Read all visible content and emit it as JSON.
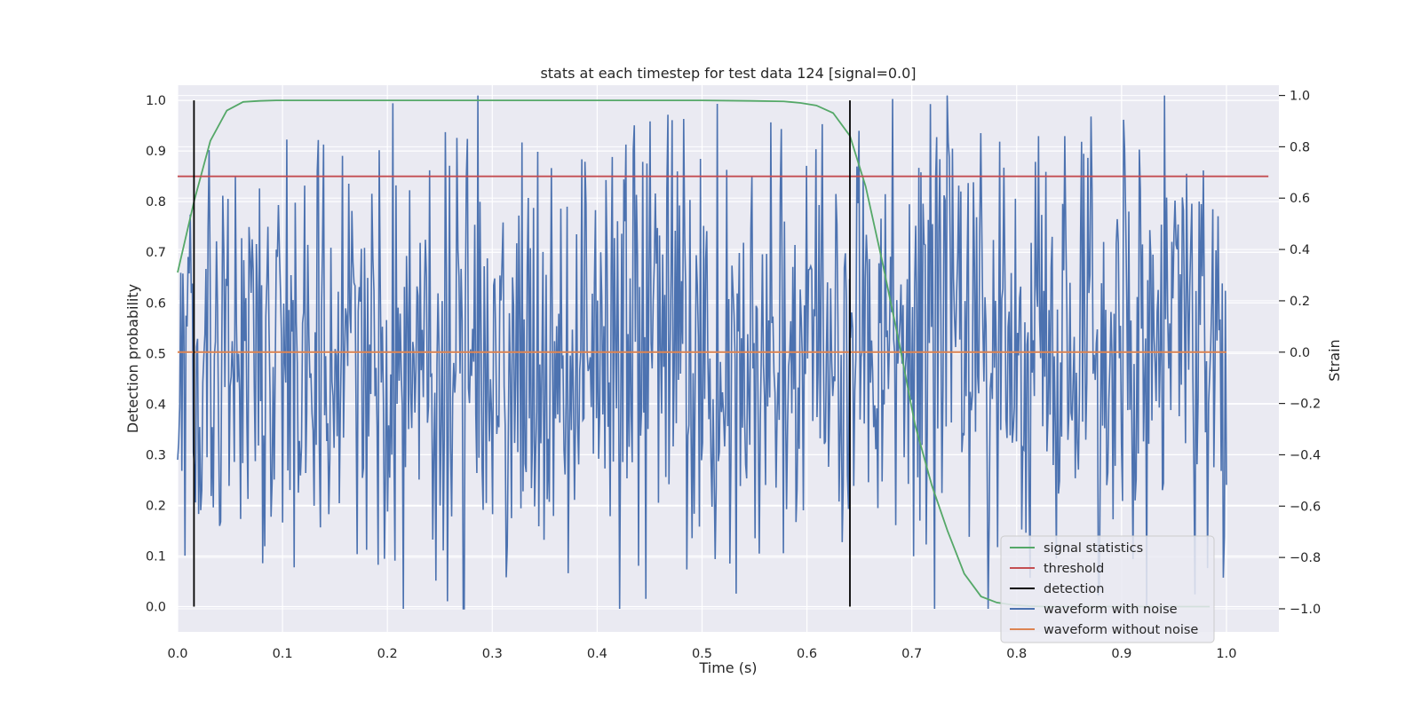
{
  "chart_data": {
    "type": "line",
    "title": "stats at each timestep for test data 124 [signal=0.0]",
    "xlabel": "Time (s)",
    "ylabel": "Detection probability",
    "y2label": "Strain",
    "xlim": [
      0.0,
      1.05
    ],
    "ylim": [
      -0.05,
      1.03
    ],
    "y2lim": [
      -1.09,
      1.04
    ],
    "xticks": [
      "0.0",
      "0.1",
      "0.2",
      "0.3",
      "0.4",
      "0.5",
      "0.6",
      "0.7",
      "0.8",
      "0.9",
      "1.0"
    ],
    "yticks": [
      "0.0",
      "0.1",
      "0.2",
      "0.3",
      "0.4",
      "0.5",
      "0.6",
      "0.7",
      "0.8",
      "0.9",
      "1.0"
    ],
    "y2ticks": [
      "−1.0",
      "−0.8",
      "−0.6",
      "−0.4",
      "−0.2",
      "0.0",
      "0.2",
      "0.4",
      "0.6",
      "0.8",
      "1.0"
    ],
    "grid": true,
    "legend_position": "lower-right",
    "series": [
      {
        "name": "signal statistics",
        "axis": "left",
        "color": "#55a868",
        "x": [
          0.0,
          0.0156,
          0.0312,
          0.0469,
          0.0625,
          0.0781,
          0.0938,
          0.125,
          0.2,
          0.3,
          0.4,
          0.5,
          0.547,
          0.578,
          0.594,
          0.609,
          0.625,
          0.641,
          0.656,
          0.672,
          0.688,
          0.703,
          0.719,
          0.734,
          0.75,
          0.766,
          0.781,
          0.797,
          0.812,
          0.828,
          0.844,
          0.859,
          0.875,
          0.891,
          0.906,
          0.922,
          0.938,
          0.953,
          0.969,
          0.984
        ],
        "values": [
          0.66,
          0.8,
          0.92,
          0.98,
          0.997,
          0.999,
          1.0,
          1.0,
          1.0,
          1.0,
          1.0,
          1.0,
          0.999,
          0.998,
          0.995,
          0.99,
          0.975,
          0.93,
          0.83,
          0.68,
          0.52,
          0.36,
          0.24,
          0.15,
          0.065,
          0.02,
          0.008,
          0.003,
          0.001,
          0.0,
          0.0,
          0.0,
          0.0,
          0.0,
          0.0,
          0.0,
          0.0,
          0.0,
          0.0,
          0.0
        ]
      },
      {
        "name": "threshold",
        "axis": "left",
        "color": "#c44e52",
        "x": [
          0.0,
          1.04
        ],
        "values": [
          0.85,
          0.85
        ]
      },
      {
        "name": "detection",
        "axis": "left",
        "color": "#000000",
        "segments": [
          {
            "x": 0.0156,
            "y": [
              0.0,
              1.0
            ]
          },
          {
            "x": 0.641,
            "y": [
              0.0,
              1.0
            ]
          }
        ]
      },
      {
        "name": "waveform with noise",
        "axis": "right",
        "color": "#4c72b0",
        "x_range": [
          0.0,
          1.0
        ],
        "n_points": 1000,
        "note_values": "random noise around 0 with amplitude about ±1.0 (generated)"
      },
      {
        "name": "waveform without noise",
        "axis": "right",
        "color": "#dd8452",
        "x": [
          0.0,
          1.0
        ],
        "values": [
          0.0,
          0.0
        ]
      }
    ]
  }
}
